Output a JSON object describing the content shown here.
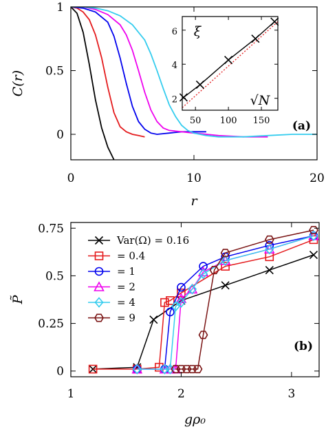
{
  "chart_data": [
    {
      "type": "line",
      "panel_label": "(a)",
      "xlabel": "r",
      "ylabel": "C(r)",
      "xlim": [
        0,
        20
      ],
      "ylim": [
        -0.2,
        1
      ],
      "xticks": [
        "0",
        "10",
        "20"
      ],
      "yticks": [
        "0",
        "0.5",
        "1"
      ],
      "grid": false,
      "series": [
        {
          "color": "#000000",
          "x": [
            0,
            0.5,
            1,
            1.5,
            2,
            2.5,
            3,
            3.5
          ],
          "y": [
            1,
            0.95,
            0.8,
            0.55,
            0.27,
            0.05,
            -0.1,
            -0.2
          ]
        },
        {
          "color": "#e41a1c",
          "x": [
            0,
            0.5,
            1,
            1.5,
            2,
            2.5,
            3,
            3.5,
            4,
            4.5,
            5,
            5.5,
            6
          ],
          "y": [
            1,
            0.99,
            0.96,
            0.9,
            0.78,
            0.6,
            0.37,
            0.17,
            0.06,
            0.02,
            0.0,
            -0.01,
            -0.02
          ]
        },
        {
          "color": "#0000ee",
          "x": [
            0,
            1,
            2,
            3,
            3.5,
            4,
            4.5,
            5,
            5.5,
            6,
            6.5,
            7,
            8,
            9,
            10,
            11
          ],
          "y": [
            1,
            0.99,
            0.96,
            0.88,
            0.77,
            0.6,
            0.4,
            0.22,
            0.1,
            0.04,
            0.01,
            0.0,
            0.01,
            0.02,
            0.02,
            0.02
          ]
        },
        {
          "color": "#ee00ee",
          "x": [
            0,
            1,
            2,
            3,
            4,
            4.5,
            5,
            5.5,
            6,
            6.5,
            7,
            7.5,
            8,
            9,
            10,
            12,
            14,
            16
          ],
          "y": [
            1,
            1.0,
            0.98,
            0.94,
            0.86,
            0.78,
            0.66,
            0.5,
            0.33,
            0.19,
            0.1,
            0.05,
            0.03,
            0.02,
            0.01,
            -0.01,
            -0.02,
            -0.02
          ]
        },
        {
          "color": "#33ccee",
          "x": [
            0,
            1,
            2,
            3,
            4,
            5,
            6,
            6.5,
            7,
            7.5,
            8,
            8.5,
            9,
            9.5,
            10,
            11,
            12,
            14,
            16,
            18,
            20
          ],
          "y": [
            1,
            1.0,
            0.99,
            0.97,
            0.93,
            0.86,
            0.74,
            0.63,
            0.5,
            0.36,
            0.23,
            0.14,
            0.07,
            0.03,
            0.01,
            -0.01,
            -0.02,
            -0.02,
            -0.01,
            0.0,
            0.0
          ]
        }
      ],
      "inset": {
        "xlabel": "√N",
        "ylabel": "ξ",
        "xlim": [
          30,
          175
        ],
        "ylim": [
          1.3,
          6.8
        ],
        "xticks": [
          "50",
          "100",
          "150"
        ],
        "yticks": [
          "2",
          "4",
          "6"
        ],
        "data": {
          "color": "#000000",
          "marker": "x",
          "x": [
            32,
            57,
            100,
            141,
            170
          ],
          "y": [
            2.05,
            2.8,
            4.25,
            5.5,
            6.5
          ]
        },
        "reference": {
          "color": "#e41a1c",
          "style": "dotted",
          "x": [
            30,
            175
          ],
          "y": [
            1.45,
            6.5
          ]
        }
      }
    },
    {
      "type": "line",
      "panel_label": "(b)",
      "xlabel": "gρ₀",
      "ylabel": "P̃",
      "xlim": [
        1,
        3.25
      ],
      "ylim": [
        -0.03,
        0.78
      ],
      "xticks": [
        "1",
        "2",
        "3"
      ],
      "yticks": [
        "0",
        "0.25",
        "0.5",
        "0.75"
      ],
      "grid": false,
      "legend_position": "top-left",
      "series": [
        {
          "name": "Var(Ω) = 0.16",
          "color": "#000000",
          "marker": "x",
          "x": [
            1.2,
            1.6,
            1.75,
            2.0,
            2.4,
            2.8,
            3.2
          ],
          "y": [
            0.01,
            0.02,
            0.27,
            0.37,
            0.45,
            0.53,
            0.61
          ]
        },
        {
          "name": "= 0.4",
          "color": "#e41a1c",
          "marker": "square",
          "x": [
            1.2,
            1.6,
            1.8,
            1.85,
            1.9,
            2.0,
            2.4,
            2.8,
            3.2
          ],
          "y": [
            0.01,
            0.01,
            0.02,
            0.36,
            0.37,
            0.41,
            0.55,
            0.6,
            0.69
          ]
        },
        {
          "name": "= 1",
          "color": "#0000ee",
          "marker": "circle",
          "x": [
            1.6,
            1.85,
            1.9,
            2.0,
            2.2,
            2.4,
            2.8,
            3.2
          ],
          "y": [
            0.01,
            0.01,
            0.31,
            0.44,
            0.55,
            0.6,
            0.66,
            0.71
          ]
        },
        {
          "name": "= 2",
          "color": "#ee00ee",
          "marker": "triangle",
          "x": [
            1.6,
            1.85,
            1.9,
            1.95,
            2.0,
            2.1,
            2.2,
            2.4,
            2.8,
            3.2
          ],
          "y": [
            0.01,
            0.01,
            0.01,
            0.01,
            0.38,
            0.43,
            0.52,
            0.58,
            0.64,
            0.71
          ]
        },
        {
          "name": "= 4",
          "color": "#33ccee",
          "marker": "diamond",
          "x": [
            1.6,
            1.85,
            1.9,
            1.95,
            2.0,
            2.1,
            2.2,
            2.4,
            2.8,
            3.2
          ],
          "y": [
            0.01,
            0.01,
            0.01,
            0.34,
            0.36,
            0.43,
            0.51,
            0.58,
            0.64,
            0.71
          ]
        },
        {
          "name": "= 9",
          "color": "#7a1414",
          "marker": "hexagon",
          "x": [
            1.95,
            2.0,
            2.05,
            2.1,
            2.15,
            2.2,
            2.3,
            2.4,
            2.8,
            3.2
          ],
          "y": [
            0.01,
            0.01,
            0.01,
            0.01,
            0.01,
            0.19,
            0.53,
            0.62,
            0.69,
            0.74
          ]
        }
      ]
    }
  ]
}
